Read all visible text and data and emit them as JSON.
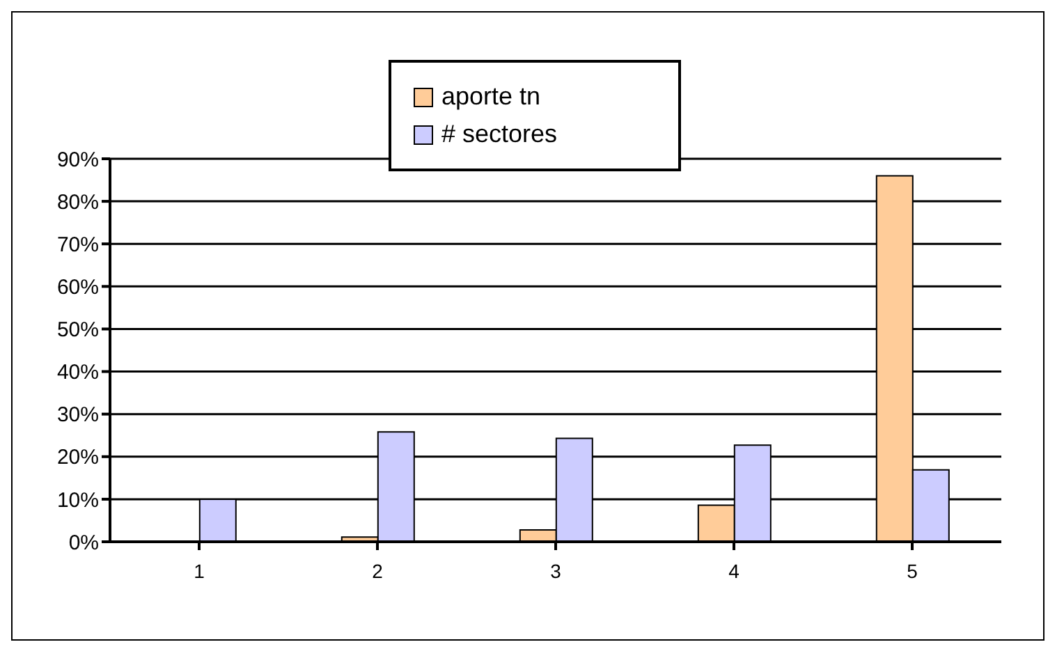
{
  "chart_data": {
    "type": "bar",
    "categories": [
      "1",
      "2",
      "3",
      "4",
      "5"
    ],
    "series": [
      {
        "name": "aporte tn",
        "color": "#ffcc99",
        "values": [
          0,
          1.1,
          2.8,
          8.6,
          86
        ]
      },
      {
        "name": "# sectores",
        "color": "#ccccff",
        "values": [
          10,
          25.8,
          24.3,
          22.7,
          16.9
        ]
      }
    ],
    "ylim": [
      0,
      90
    ],
    "yticks": [
      {
        "value": 0,
        "label": "0%"
      },
      {
        "value": 10,
        "label": "10%"
      },
      {
        "value": 20,
        "label": "20%"
      },
      {
        "value": 30,
        "label": "30%"
      },
      {
        "value": 40,
        "label": "40%"
      },
      {
        "value": 50,
        "label": "50%"
      },
      {
        "value": 60,
        "label": "60%"
      },
      {
        "value": 70,
        "label": "70%"
      },
      {
        "value": 80,
        "label": "80%"
      },
      {
        "value": 90,
        "label": "90%"
      }
    ],
    "grid": "y",
    "legend": "top"
  }
}
